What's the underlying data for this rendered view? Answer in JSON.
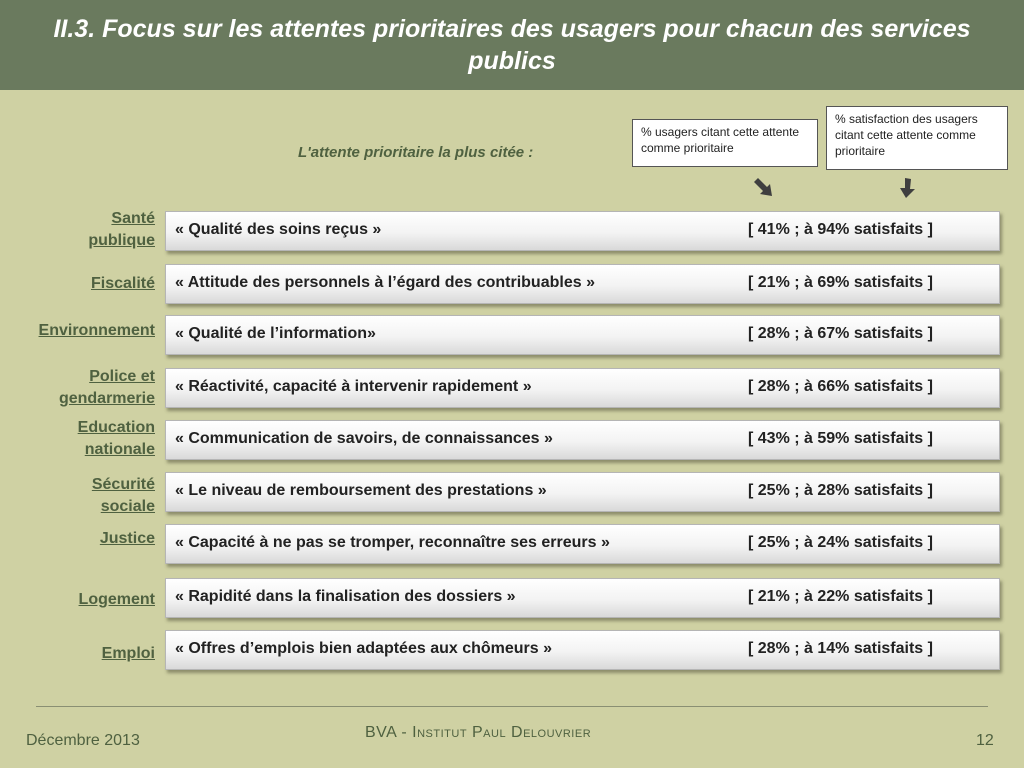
{
  "header": {
    "title": "II.3. Focus sur les attentes prioritaires des usagers pour chacun des services publics"
  },
  "subtitle": "L'attente prioritaire la plus citée :",
  "legend": {
    "usagers": "% usagers citant cette attente comme prioritaire",
    "satisfaction": "% satisfaction des usagers citant cette attente comme prioritaire"
  },
  "rows": [
    {
      "service": "Santé\npublique",
      "expectation": "« Qualité des soins reçus »",
      "stats": "[ 41% ; à 94% satisfaits ]"
    },
    {
      "service": "Fiscalité",
      "expectation": "« Attitude des personnels à l’égard des contribuables »",
      "stats": "[ 21% ; à 69% satisfaits ]"
    },
    {
      "service": "Environnement",
      "expectation": "« Qualité de l’information»",
      "stats": "[ 28% ; à 67% satisfaits ]"
    },
    {
      "service": "Police et\ngendarmerie",
      "expectation": "« Réactivité, capacité à intervenir rapidement »",
      "stats": "[ 28% ; à 66% satisfaits ]"
    },
    {
      "service": "Education\nnationale",
      "expectation": "« Communication de savoirs, de connaissances »",
      "stats": "[ 43% ; à 59% satisfaits ]"
    },
    {
      "service": "Sécurité\nsociale",
      "expectation": "« Le niveau de remboursement des prestations »",
      "stats": "[ 25% ; à 28% satisfaits ]"
    },
    {
      "service": "Justice",
      "expectation": "« Capacité à ne pas se tromper, reconnaître ses erreurs »",
      "stats": "[ 25% ; à 24% satisfaits ]"
    },
    {
      "service": "Logement",
      "expectation": "« Rapidité dans la finalisation des dossiers »",
      "stats": "[ 21% ; à 22% satisfaits ]"
    },
    {
      "service": "Emploi",
      "expectation": "« Offres d’emplois bien adaptées aux chômeurs »",
      "stats": "[ 28% ; à 14% satisfaits ]"
    }
  ],
  "footer": {
    "date": "Décembre 2013",
    "source": "BVA - Institut Paul Delouvrier",
    "page": "12"
  },
  "icons": {
    "arrow": "arrow-down-right-icon",
    "arrow2": "arrow-down-icon"
  },
  "colors": {
    "header_bg": "#6a7a5e",
    "page_bg": "#cfd1a3",
    "accent_text": "#4f6140"
  }
}
